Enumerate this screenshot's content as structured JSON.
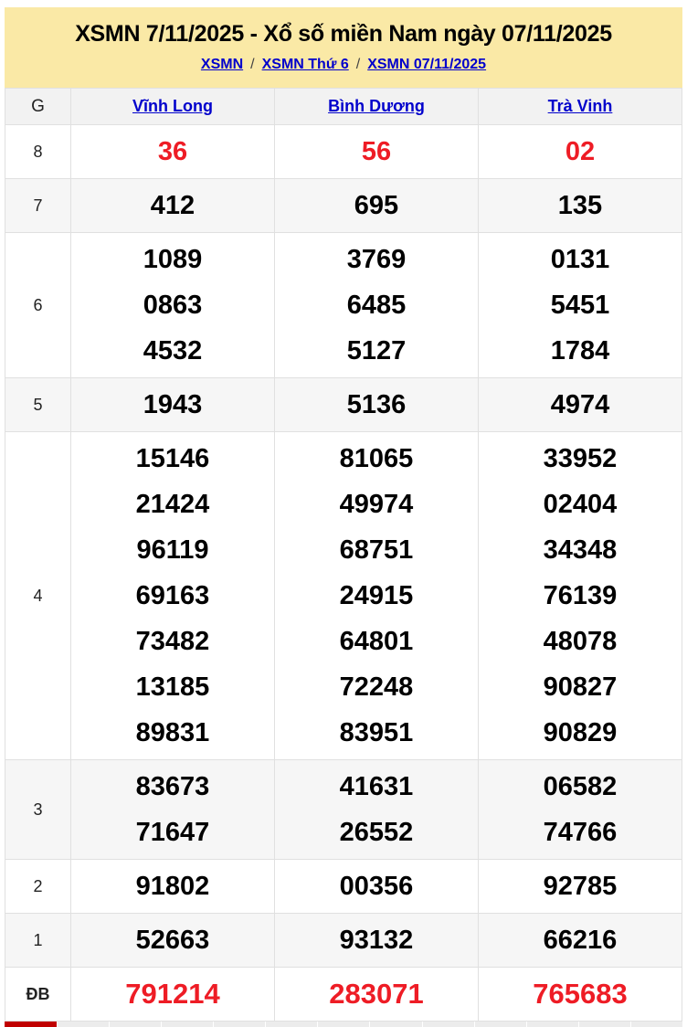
{
  "banner": {
    "title": "XSMN 7/11/2025 - Xổ số miền Nam ngày 07/11/2025",
    "separator": "/",
    "breadcrumb": [
      "XSMN",
      "XSMN Thứ 6",
      "XSMN 07/11/2025"
    ]
  },
  "colors": {
    "banner_bg": "#fae9a6",
    "link_blue": "#0000cc",
    "prize_red": "#ee1c25",
    "strip_red": "#c00000",
    "row_shade": "#f6f6f6",
    "border": "#e0e0e0"
  },
  "table": {
    "corner_label": "G",
    "provinces": [
      "Vĩnh Long",
      "Bình Dương",
      "Trà Vinh"
    ],
    "rows": [
      {
        "label": "8",
        "red": true,
        "cells": [
          [
            "36"
          ],
          [
            "56"
          ],
          [
            "02"
          ]
        ]
      },
      {
        "label": "7",
        "red": false,
        "cells": [
          [
            "412"
          ],
          [
            "695"
          ],
          [
            "135"
          ]
        ]
      },
      {
        "label": "6",
        "red": false,
        "cells": [
          [
            "1089",
            "0863",
            "4532"
          ],
          [
            "3769",
            "6485",
            "5127"
          ],
          [
            "0131",
            "5451",
            "1784"
          ]
        ]
      },
      {
        "label": "5",
        "red": false,
        "cells": [
          [
            "1943"
          ],
          [
            "5136"
          ],
          [
            "4974"
          ]
        ]
      },
      {
        "label": "4",
        "red": false,
        "cells": [
          [
            "15146",
            "21424",
            "96119",
            "69163",
            "73482",
            "13185",
            "89831"
          ],
          [
            "81065",
            "49974",
            "68751",
            "24915",
            "64801",
            "72248",
            "83951"
          ],
          [
            "33952",
            "02404",
            "34348",
            "76139",
            "48078",
            "90827",
            "90829"
          ]
        ]
      },
      {
        "label": "3",
        "red": false,
        "cells": [
          [
            "83673",
            "71647"
          ],
          [
            "41631",
            "26552"
          ],
          [
            "06582",
            "74766"
          ]
        ]
      },
      {
        "label": "2",
        "red": false,
        "cells": [
          [
            "91802"
          ],
          [
            "00356"
          ],
          [
            "92785"
          ]
        ]
      },
      {
        "label": "1",
        "red": false,
        "cells": [
          [
            "52663"
          ],
          [
            "93132"
          ],
          [
            "66216"
          ]
        ]
      },
      {
        "label": "ĐB",
        "red": true,
        "cells": [
          [
            "791214"
          ],
          [
            "283071"
          ],
          [
            "765683"
          ]
        ]
      }
    ]
  }
}
